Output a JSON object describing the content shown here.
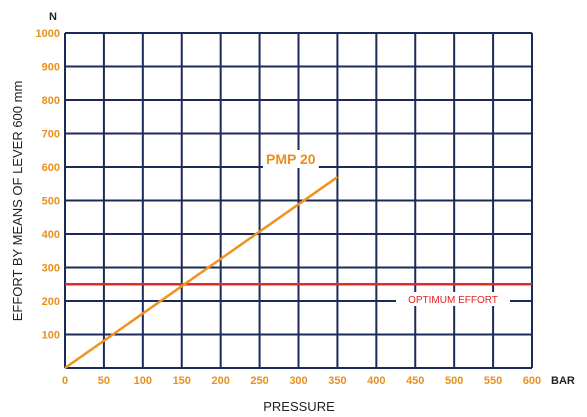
{
  "chart_data": {
    "type": "line",
    "x_unit": "BAR",
    "y_unit": "N",
    "xlabel": "PRESSURE",
    "ylabel": "EFFORT BY MEANS OF LEVER 600 mm",
    "xlim": [
      0,
      600
    ],
    "ylim": [
      0,
      1000
    ],
    "x_ticks": [
      0,
      50,
      100,
      150,
      200,
      250,
      300,
      350,
      400,
      450,
      500,
      550,
      600
    ],
    "y_ticks": [
      100,
      200,
      300,
      400,
      500,
      600,
      700,
      800,
      900,
      1000
    ],
    "grid": true,
    "series": [
      {
        "name": "PMP 20",
        "x": [
          0,
          350
        ],
        "y": [
          0,
          570
        ],
        "color": "#f0921e"
      }
    ],
    "reference_lines": [
      {
        "name": "OPTIMUM EFFORT",
        "y": 250,
        "color": "#e32a2a"
      }
    ],
    "colors": {
      "grid": "#1b2a5a",
      "tick_labels": "#e8901e",
      "text": "#222222"
    }
  }
}
